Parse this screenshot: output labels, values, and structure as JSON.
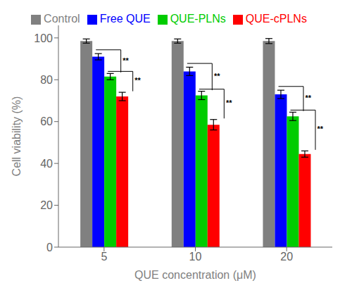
{
  "chart_data": {
    "type": "bar",
    "xlabel": "QUE concentration (μM)",
    "ylabel": "Cell viability (%)",
    "categories": [
      "5",
      "10",
      "20"
    ],
    "series": [
      {
        "name": "Control",
        "color": "#808080",
        "values": [
          98.5,
          98.5,
          98.5
        ],
        "errors": [
          1.0,
          1.0,
          1.2
        ]
      },
      {
        "name": "Free QUE",
        "color": "#0000ff",
        "values": [
          91.0,
          84.0,
          73.0
        ],
        "errors": [
          1.5,
          2.0,
          2.0
        ]
      },
      {
        "name": "QUE-PLNs",
        "color": "#00cc00",
        "values": [
          81.5,
          72.5,
          62.5
        ],
        "errors": [
          1.5,
          2.0,
          2.0
        ]
      },
      {
        "name": "QUE-cPLNs",
        "color": "#ff0000",
        "values": [
          72.0,
          58.5,
          44.5
        ],
        "errors": [
          2.0,
          2.5,
          1.5
        ]
      }
    ],
    "ylim": [
      0,
      106
    ],
    "yticks": [
      0,
      20,
      40,
      60,
      80,
      100
    ],
    "grid": false,
    "legend": "top",
    "annotations": [
      {
        "text": "**",
        "category": "5",
        "from": "Free QUE",
        "to": "QUE-PLNs"
      },
      {
        "text": "**",
        "category": "5",
        "from": "QUE-PLNs",
        "to": "QUE-cPLNs"
      },
      {
        "text": "**",
        "category": "10",
        "from": "Free QUE",
        "to": "QUE-PLNs"
      },
      {
        "text": "**",
        "category": "10",
        "from": "QUE-PLNs",
        "to": "QUE-cPLNs"
      },
      {
        "text": "**",
        "category": "20",
        "from": "Free QUE",
        "to": "QUE-PLNs"
      },
      {
        "text": "**",
        "category": "20",
        "from": "QUE-PLNs",
        "to": "QUE-cPLNs"
      }
    ]
  }
}
